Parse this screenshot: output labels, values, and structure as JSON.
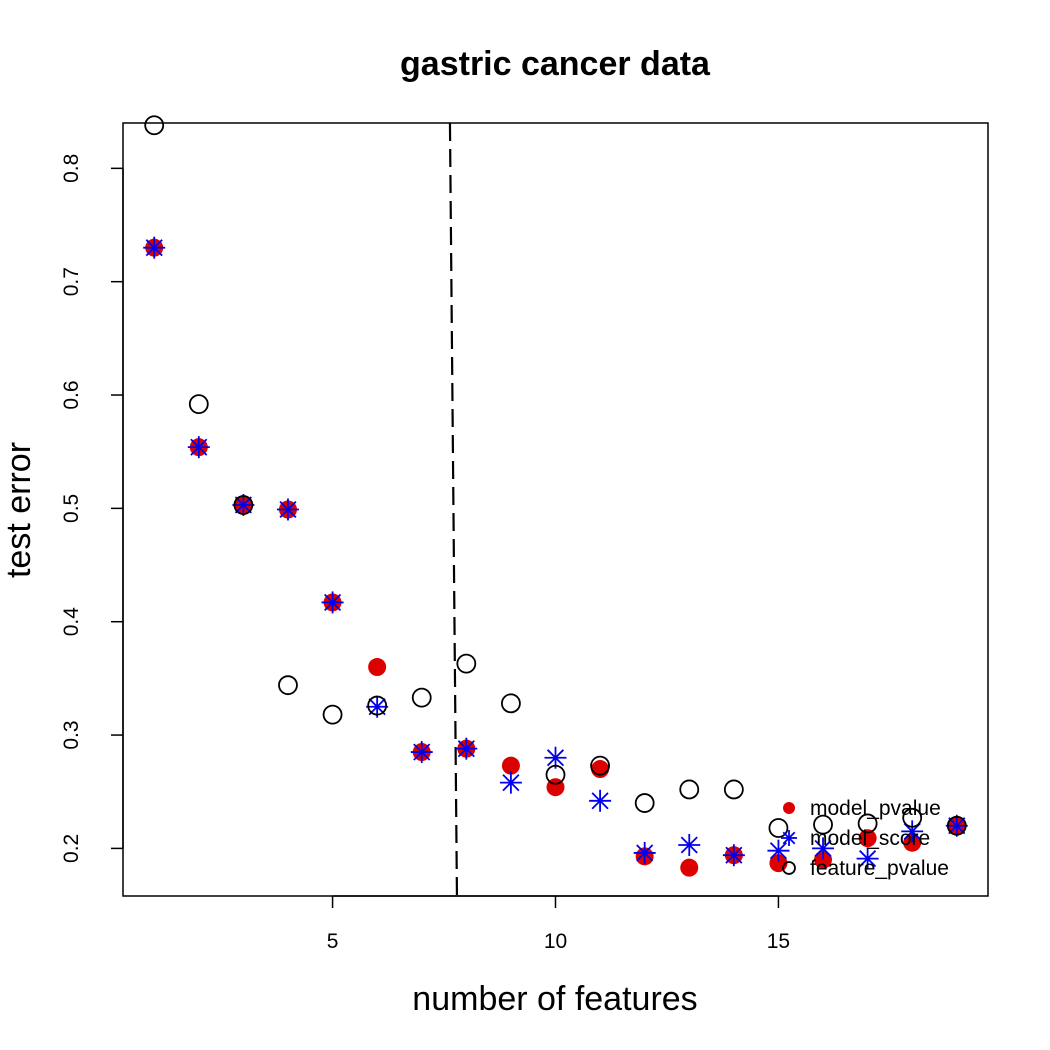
{
  "chart_data": {
    "type": "scatter",
    "title": "gastric cancer data",
    "xlabel": "number of features",
    "ylabel": "test error",
    "xlim": [
      0.3,
      19.7
    ],
    "ylim": [
      0.158,
      0.84
    ],
    "x_ticks": [
      5,
      10,
      15
    ],
    "y_ticks": [
      0.2,
      0.3,
      0.4,
      0.5,
      0.6,
      0.7,
      0.8
    ],
    "vline": {
      "x": 7.7,
      "style": "dashed"
    },
    "legend_position": "bottom-right",
    "series": [
      {
        "name": "model_pvalue",
        "marker": "filled-circle",
        "color": "#dd0000",
        "points": [
          [
            1,
            0.73
          ],
          [
            2,
            0.554
          ],
          [
            3,
            0.503
          ],
          [
            4,
            0.499
          ],
          [
            5,
            0.417
          ],
          [
            6,
            0.36
          ],
          [
            7,
            0.285
          ],
          [
            8,
            0.288
          ],
          [
            9,
            0.273
          ],
          [
            10,
            0.254
          ],
          [
            11,
            0.27
          ],
          [
            12,
            0.193
          ],
          [
            13,
            0.183
          ],
          [
            14,
            0.194
          ],
          [
            15,
            0.187
          ],
          [
            16,
            0.19
          ],
          [
            17,
            0.209
          ],
          [
            18,
            0.205
          ],
          [
            19,
            0.22
          ]
        ]
      },
      {
        "name": "model_score",
        "marker": "asterisk",
        "color": "#0000ee",
        "points": [
          [
            1,
            0.73
          ],
          [
            2,
            0.554
          ],
          [
            3,
            0.503
          ],
          [
            4,
            0.499
          ],
          [
            5,
            0.417
          ],
          [
            6,
            0.325
          ],
          [
            7,
            0.285
          ],
          [
            8,
            0.288
          ],
          [
            9,
            0.258
          ],
          [
            10,
            0.28
          ],
          [
            11,
            0.242
          ],
          [
            12,
            0.196
          ],
          [
            13,
            0.203
          ],
          [
            14,
            0.194
          ],
          [
            15,
            0.198
          ],
          [
            16,
            0.2
          ],
          [
            17,
            0.191
          ],
          [
            18,
            0.215
          ],
          [
            19,
            0.22
          ]
        ]
      },
      {
        "name": "feature_pvalue",
        "marker": "open-circle",
        "color": "#000000",
        "points": [
          [
            1,
            0.838
          ],
          [
            2,
            0.592
          ],
          [
            3,
            0.503
          ],
          [
            4,
            0.344
          ],
          [
            5,
            0.318
          ],
          [
            6,
            0.326
          ],
          [
            7,
            0.333
          ],
          [
            8,
            0.363
          ],
          [
            9,
            0.328
          ],
          [
            10,
            0.265
          ],
          [
            11,
            0.273
          ],
          [
            12,
            0.24
          ],
          [
            13,
            0.252
          ],
          [
            14,
            0.252
          ],
          [
            15,
            0.218
          ],
          [
            16,
            0.221
          ],
          [
            17,
            0.222
          ],
          [
            18,
            0.227
          ],
          [
            19,
            0.22
          ]
        ]
      }
    ]
  }
}
